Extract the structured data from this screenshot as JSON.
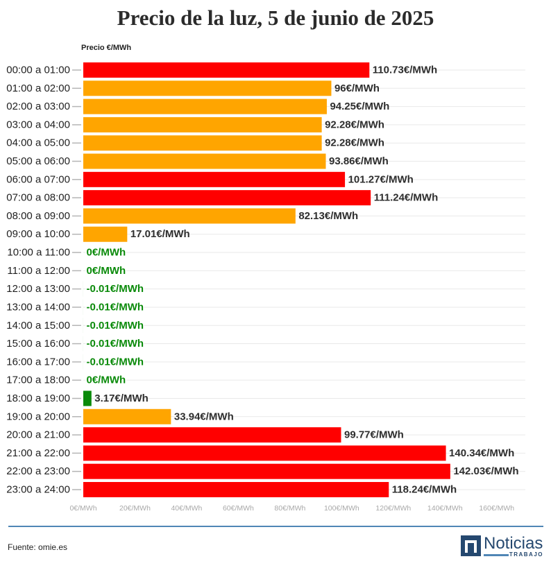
{
  "chart_data": {
    "type": "bar",
    "horizontal": true,
    "title": "Precio de la luz, 5 de junio de 2025",
    "xlabel": "Precio €/MWh",
    "ylabel": "",
    "grid": true,
    "xlim": [
      0,
      170
    ],
    "xticks": [
      0,
      20,
      40,
      60,
      80,
      100,
      120,
      140,
      160
    ],
    "xtick_labels": [
      "0€/MWh",
      "20€/MWh",
      "40€/MWh",
      "60€/MWh",
      "80€/MWh",
      "100€/MWh",
      "120€/MWh",
      "140€/MWh",
      "160€/MWh"
    ],
    "categories": [
      "00:00 a 01:00",
      "01:00 a 02:00",
      "02:00 a 03:00",
      "03:00 a 04:00",
      "04:00 a 05:00",
      "05:00 a 06:00",
      "06:00 a 07:00",
      "07:00 a 08:00",
      "08:00 a 09:00",
      "09:00 a 10:00",
      "10:00 a 11:00",
      "11:00 a 12:00",
      "12:00 a 13:00",
      "13:00 a 14:00",
      "14:00 a 15:00",
      "15:00 a 16:00",
      "16:00 a 17:00",
      "17:00 a 18:00",
      "18:00 a 19:00",
      "19:00 a 20:00",
      "20:00 a 21:00",
      "21:00 a 22:00",
      "22:00 a 23:00",
      "23:00 a 24:00"
    ],
    "values": [
      110.73,
      96,
      94.25,
      92.28,
      92.28,
      93.86,
      101.27,
      111.24,
      82.13,
      17.01,
      0,
      0,
      -0.01,
      -0.01,
      -0.01,
      -0.01,
      -0.01,
      0,
      3.17,
      33.94,
      99.77,
      140.34,
      142.03,
      118.24
    ],
    "value_labels": [
      "110.73€/MWh",
      "96€/MWh",
      "94.25€/MWh",
      "92.28€/MWh",
      "92.28€/MWh",
      "93.86€/MWh",
      "101.27€/MWh",
      "111.24€/MWh",
      "82.13€/MWh",
      "17.01€/MWh",
      "0€/MWh",
      "0€/MWh",
      "-0.01€/MWh",
      "-0.01€/MWh",
      "-0.01€/MWh",
      "-0.01€/MWh",
      "-0.01€/MWh",
      "0€/MWh",
      "3.17€/MWh",
      "33.94€/MWh",
      "99.77€/MWh",
      "140.34€/MWh",
      "142.03€/MWh",
      "118.24€/MWh"
    ],
    "colors": [
      "#ff0000",
      "#ffa500",
      "#ffa500",
      "#ffa500",
      "#ffa500",
      "#ffa500",
      "#ff0000",
      "#ff0000",
      "#ffa500",
      "#ffa500",
      "#0a8a0a",
      "#0a8a0a",
      "#0a8a0a",
      "#0a8a0a",
      "#0a8a0a",
      "#0a8a0a",
      "#0a8a0a",
      "#0a8a0a",
      "#0a8a0a",
      "#ffa500",
      "#ff0000",
      "#ff0000",
      "#ff0000",
      "#ff0000"
    ]
  },
  "footer": {
    "source": "Fuente: omie.es"
  },
  "logo": {
    "name": "Noticias",
    "tagline": "TRABAJO",
    "brand_color": "#25486f",
    "accent_color": "#4f86b5"
  }
}
